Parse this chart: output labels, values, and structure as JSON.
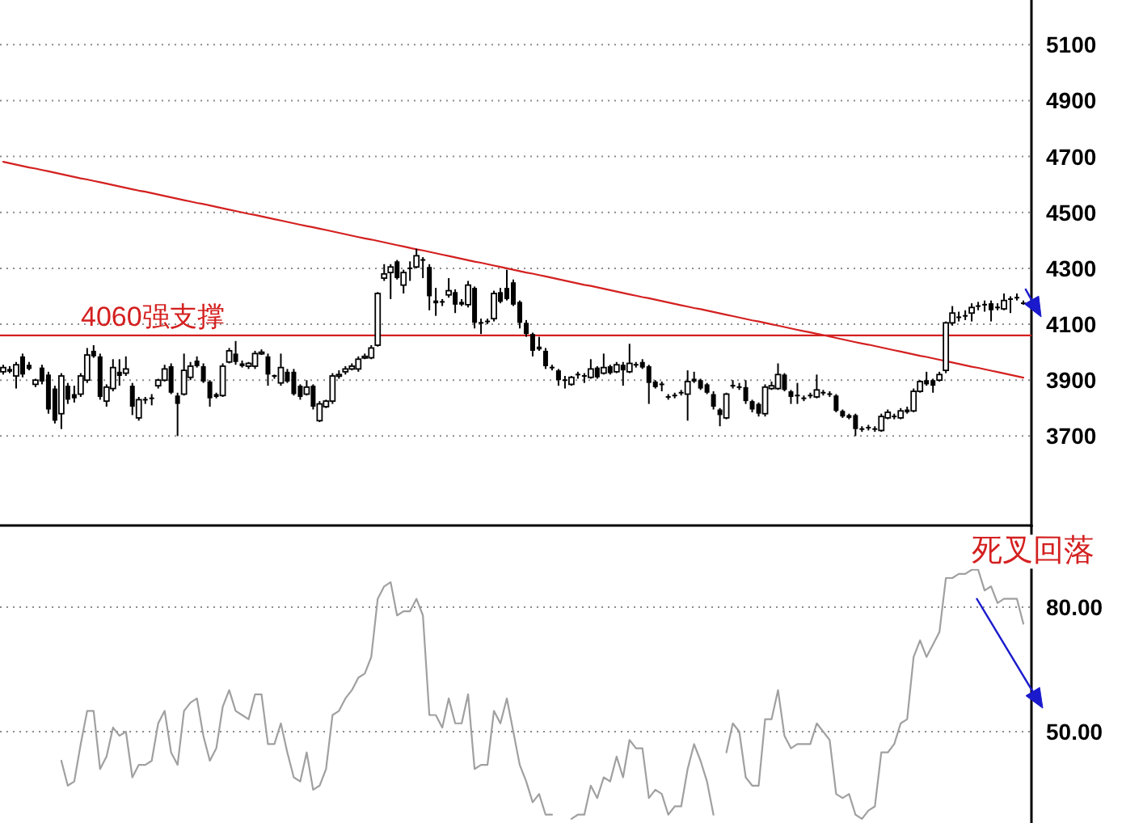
{
  "chart_data": [
    {
      "type": "candlestick",
      "categories": [
        null,
        null,
        null,
        null,
        null,
        null,
        null,
        null,
        null,
        null,
        null,
        null,
        null,
        null,
        null,
        null,
        null,
        null,
        null,
        null,
        null,
        null,
        null,
        null,
        null,
        null,
        null,
        null,
        null,
        null,
        null,
        null,
        null,
        null,
        null,
        null,
        null,
        null,
        null,
        null,
        null,
        null,
        null,
        null,
        null,
        null,
        null,
        null,
        null,
        null,
        null,
        null,
        null,
        null,
        null,
        null,
        null,
        null,
        null,
        null,
        null,
        null,
        null,
        null,
        null,
        null,
        null,
        null,
        null,
        null,
        null,
        null,
        null,
        null,
        null,
        null,
        null,
        null,
        null,
        null,
        null,
        null,
        null,
        null,
        null,
        null,
        null,
        null,
        null,
        null,
        null,
        null,
        null,
        null,
        null,
        null,
        null,
        null,
        null,
        null,
        null,
        null,
        null,
        null,
        null,
        null,
        null,
        null,
        null,
        null,
        null,
        null,
        null,
        null,
        null,
        null,
        null,
        null,
        null,
        null,
        null,
        null,
        null,
        null,
        null,
        null,
        null,
        null,
        null,
        null,
        null,
        null,
        null,
        null,
        null,
        null,
        null,
        null,
        null,
        null,
        null,
        null,
        null,
        null,
        null,
        null,
        null,
        null,
        null,
        null,
        null,
        null,
        null,
        null,
        null,
        null,
        null,
        null,
        null
      ],
      "ohlc": [
        [
          3930,
          3955,
          3920,
          3945
        ],
        [
          3940,
          3950,
          3925,
          3930
        ],
        [
          3915,
          3965,
          3870,
          3955
        ],
        [
          3985,
          3995,
          3910,
          3920
        ],
        [
          3955,
          3965,
          3935,
          3940
        ],
        [
          3885,
          3905,
          3875,
          3900
        ],
        [
          3945,
          3955,
          3885,
          3895
        ],
        [
          3920,
          3930,
          3780,
          3795
        ],
        [
          3870,
          3880,
          3745,
          3755
        ],
        [
          3780,
          3925,
          3725,
          3915
        ],
        [
          3880,
          3890,
          3815,
          3830
        ],
        [
          3850,
          3880,
          3820,
          3835
        ],
        [
          3850,
          3925,
          3840,
          3915
        ],
        [
          3900,
          4015,
          3890,
          3990
        ],
        [
          4005,
          4025,
          3980,
          3985
        ],
        [
          3985,
          3995,
          3830,
          3840
        ],
        [
          3825,
          3885,
          3805,
          3875
        ],
        [
          3870,
          3975,
          3860,
          3945
        ],
        [
          3930,
          3975,
          3880,
          3915
        ],
        [
          3925,
          3985,
          3915,
          3940
        ],
        [
          3880,
          3890,
          3775,
          3805
        ],
        [
          3765,
          3840,
          3755,
          3830
        ],
        [
          3830,
          3840,
          3815,
          3825
        ],
        [
          3835,
          3850,
          3810,
          3830
        ],
        [
          3880,
          3905,
          3870,
          3900
        ],
        [
          3900,
          3955,
          3895,
          3940
        ],
        [
          3950,
          3960,
          3850,
          3855
        ],
        [
          3845,
          3855,
          3700,
          3815
        ],
        [
          3850,
          3995,
          3845,
          3935
        ],
        [
          3910,
          3965,
          3900,
          3950
        ],
        [
          3970,
          3985,
          3945,
          3950
        ],
        [
          3950,
          3960,
          3890,
          3895
        ],
        [
          3895,
          3900,
          3805,
          3835
        ],
        [
          3850,
          3855,
          3835,
          3840
        ],
        [
          3845,
          3960,
          3840,
          3950
        ],
        [
          3965,
          4015,
          3960,
          4005
        ],
        [
          3995,
          4040,
          3955,
          3965
        ],
        [
          3960,
          3970,
          3945,
          3950
        ],
        [
          3950,
          3965,
          3940,
          3960
        ],
        [
          3950,
          4005,
          3940,
          3995
        ],
        [
          3995,
          4010,
          3990,
          4000
        ],
        [
          3985,
          3995,
          3880,
          3920
        ],
        [
          3915,
          3920,
          3905,
          3910
        ],
        [
          3890,
          3995,
          3880,
          3945
        ],
        [
          3930,
          3940,
          3890,
          3895
        ],
        [
          3930,
          3940,
          3845,
          3850
        ],
        [
          3880,
          3885,
          3830,
          3840
        ],
        [
          3850,
          3900,
          3845,
          3875
        ],
        [
          3880,
          3885,
          3795,
          3805
        ],
        [
          3755,
          3825,
          3750,
          3815
        ],
        [
          3805,
          3830,
          3800,
          3825
        ],
        [
          3825,
          3925,
          3815,
          3915
        ],
        [
          3915,
          3935,
          3905,
          3920
        ],
        [
          3930,
          3950,
          3920,
          3940
        ],
        [
          3940,
          3960,
          3935,
          3950
        ],
        [
          3940,
          3985,
          3930,
          3975
        ],
        [
          3980,
          3995,
          3975,
          3985
        ],
        [
          3980,
          4025,
          3975,
          4015
        ],
        [
          4025,
          4215,
          4020,
          4210
        ],
        [
          4265,
          4315,
          4255,
          4280
        ],
        [
          4285,
          4315,
          4190,
          4305
        ],
        [
          4325,
          4330,
          4260,
          4265
        ],
        [
          4240,
          4295,
          4210,
          4285
        ],
        [
          4300,
          4325,
          4255,
          4300
        ],
        [
          4305,
          4370,
          4300,
          4345
        ],
        [
          4330,
          4340,
          4265,
          4330
        ],
        [
          4305,
          4315,
          4150,
          4200
        ],
        [
          4185,
          4230,
          4130,
          4175
        ],
        [
          4180,
          4190,
          4165,
          4180
        ],
        [
          4205,
          4265,
          4195,
          4220
        ],
        [
          4215,
          4225,
          4140,
          4170
        ],
        [
          4180,
          4190,
          4165,
          4170
        ],
        [
          4170,
          4255,
          4160,
          4240
        ],
        [
          4230,
          4235,
          4085,
          4105
        ],
        [
          4105,
          4120,
          4065,
          4105
        ],
        [
          4110,
          4120,
          4100,
          4110
        ],
        [
          4120,
          4220,
          4110,
          4210
        ],
        [
          4215,
          4230,
          4175,
          4180
        ],
        [
          4230,
          4295,
          4185,
          4190
        ],
        [
          4250,
          4260,
          4165,
          4170
        ],
        [
          4180,
          4185,
          4085,
          4105
        ],
        [
          4105,
          4115,
          4055,
          4065
        ],
        [
          4065,
          4070,
          3985,
          4005
        ],
        [
          4020,
          4055,
          4005,
          4010
        ],
        [
          4005,
          4015,
          3940,
          3950
        ],
        [
          3945,
          3955,
          3935,
          3945
        ],
        [
          3935,
          3940,
          3880,
          3900
        ],
        [
          3900,
          3915,
          3870,
          3900
        ],
        [
          3885,
          3915,
          3880,
          3910
        ],
        [
          3920,
          3930,
          3905,
          3920
        ],
        [
          3915,
          3925,
          3890,
          3915
        ],
        [
          3910,
          3975,
          3905,
          3940
        ],
        [
          3945,
          3950,
          3905,
          3910
        ],
        [
          3925,
          3995,
          3920,
          3945
        ],
        [
          3950,
          3955,
          3920,
          3925
        ],
        [
          3930,
          3965,
          3925,
          3955
        ],
        [
          3955,
          3965,
          3880,
          3935
        ],
        [
          3930,
          4030,
          3925,
          3960
        ],
        [
          3955,
          3965,
          3945,
          3955
        ],
        [
          3965,
          3975,
          3940,
          3945
        ],
        [
          3950,
          3955,
          3815,
          3890
        ],
        [
          3895,
          3900,
          3870,
          3875
        ],
        [
          3885,
          3895,
          3860,
          3885
        ],
        [
          3840,
          3850,
          3830,
          3840
        ],
        [
          3845,
          3855,
          3835,
          3845
        ],
        [
          3855,
          3865,
          3845,
          3855
        ],
        [
          3850,
          3935,
          3755,
          3895
        ],
        [
          3905,
          3930,
          3890,
          3895
        ],
        [
          3900,
          3905,
          3865,
          3870
        ],
        [
          3885,
          3890,
          3850,
          3855
        ],
        [
          3850,
          3860,
          3795,
          3805
        ],
        [
          3795,
          3800,
          3735,
          3775
        ],
        [
          3765,
          3855,
          3760,
          3850
        ],
        [
          3880,
          3900,
          3870,
          3880
        ],
        [
          3875,
          3890,
          3865,
          3875
        ],
        [
          3875,
          3900,
          3815,
          3825
        ],
        [
          3825,
          3830,
          3785,
          3795
        ],
        [
          3815,
          3820,
          3770,
          3780
        ],
        [
          3780,
          3885,
          3770,
          3875
        ],
        [
          3870,
          3895,
          3865,
          3880
        ],
        [
          3870,
          3960,
          3865,
          3920
        ],
        [
          3920,
          3925,
          3860,
          3865
        ],
        [
          3860,
          3865,
          3815,
          3840
        ],
        [
          3845,
          3890,
          3815,
          3845
        ],
        [
          3835,
          3845,
          3825,
          3835
        ],
        [
          3845,
          3855,
          3835,
          3845
        ],
        [
          3840,
          3920,
          3835,
          3865
        ],
        [
          3855,
          3865,
          3845,
          3855
        ],
        [
          3850,
          3860,
          3840,
          3850
        ],
        [
          3845,
          3850,
          3785,
          3790
        ],
        [
          3790,
          3795,
          3765,
          3770
        ],
        [
          3775,
          3780,
          3760,
          3765
        ],
        [
          3775,
          3780,
          3700,
          3725
        ],
        [
          3725,
          3735,
          3715,
          3725
        ],
        [
          3730,
          3740,
          3720,
          3730
        ],
        [
          3725,
          3735,
          3715,
          3725
        ],
        [
          3720,
          3780,
          3715,
          3770
        ],
        [
          3765,
          3795,
          3760,
          3785
        ],
        [
          3770,
          3780,
          3760,
          3770
        ],
        [
          3765,
          3800,
          3760,
          3790
        ],
        [
          3795,
          3805,
          3780,
          3785
        ],
        [
          3790,
          3870,
          3785,
          3860
        ],
        [
          3860,
          3900,
          3855,
          3895
        ],
        [
          3900,
          3930,
          3880,
          3885
        ],
        [
          3900,
          3905,
          3855,
          3880
        ],
        [
          3900,
          3930,
          3895,
          3920
        ],
        [
          3935,
          4110,
          3925,
          4105
        ],
        [
          4105,
          4165,
          4095,
          4140
        ],
        [
          4125,
          4145,
          4110,
          4125
        ],
        [
          4130,
          4150,
          4115,
          4130
        ],
        [
          4140,
          4175,
          4110,
          4160
        ],
        [
          4165,
          4180,
          4150,
          4165
        ],
        [
          4170,
          4185,
          4145,
          4170
        ],
        [
          4175,
          4185,
          4110,
          4150
        ],
        [
          4160,
          4175,
          4150,
          4160
        ],
        [
          4155,
          4210,
          4150,
          4185
        ],
        [
          4190,
          4200,
          4140,
          4190
        ],
        [
          4195,
          4210,
          4185,
          4195
        ],
        [
          4175,
          4185,
          4170,
          4175
        ]
      ],
      "series": [
        {
          "type": "line",
          "color": "#d42020",
          "values": [
            4681,
            4676,
            4671,
            4666,
            4661,
            4657,
            4652,
            4647,
            4642,
            4637,
            4632,
            4627,
            4622,
            4618,
            4613,
            4608,
            4603,
            4598,
            4593,
            4588,
            4583,
            4578,
            4574,
            4569,
            4564,
            4559,
            4554,
            4549,
            4544,
            4539,
            4534,
            4530,
            4525,
            4520,
            4515,
            4510,
            4505,
            4500,
            4495,
            4491,
            4486,
            4481,
            4476,
            4471,
            4466,
            4461,
            4456,
            4451,
            4447,
            4442,
            4437,
            4432,
            4427,
            4422,
            4417,
            4412,
            4407,
            4403,
            4398,
            4393,
            4388,
            4383,
            4378,
            4373,
            4368,
            4364,
            4359,
            4354,
            4349,
            4344,
            4339,
            4334,
            4329,
            4324,
            4320,
            4315,
            4310,
            4305,
            4300,
            4295,
            4290,
            4285,
            4281,
            4276,
            4271,
            4266,
            4261,
            4256,
            4251,
            4246,
            4241,
            4237,
            4232,
            4227,
            4222,
            4217,
            4212,
            4207,
            4202,
            4197,
            4193,
            4188,
            4183,
            4178,
            4173,
            4168,
            4163,
            4158,
            4154,
            4149,
            4144,
            4139,
            4134,
            4129,
            4124,
            4119,
            4114,
            4110,
            4105,
            4100,
            4095,
            4090,
            4085,
            4080,
            4075,
            4071,
            4066,
            4061,
            4056,
            4051,
            4046,
            4041,
            4036,
            4031,
            4027,
            4022,
            4017,
            4012,
            4007,
            4002,
            3997,
            3992,
            3987,
            3983,
            3978,
            3973,
            3968,
            3963,
            3958,
            3953,
            3948,
            3944,
            3939,
            3934,
            3929,
            3924,
            3919,
            3914,
            3909
          ]
        }
      ],
      "ref_lines": [
        {
          "axis": "y",
          "value": 4060,
          "label": "4060强支撑",
          "color": "#d42020"
        }
      ],
      "ylim": [
        3380,
        5260
      ],
      "yticks": [
        3700,
        3900,
        4100,
        4300,
        4500,
        4700,
        4900,
        5100
      ],
      "grid": "y",
      "tick_labels": "y"
    },
    {
      "type": "line",
      "categories": [
        null,
        null,
        null,
        null,
        null,
        null,
        null,
        null,
        null,
        null,
        null,
        null,
        null,
        null,
        null,
        null,
        null,
        null,
        null,
        null,
        null,
        null,
        null,
        null,
        null,
        null,
        null,
        null,
        null,
        null,
        null,
        null,
        null,
        null,
        null,
        null,
        null,
        null,
        null,
        null,
        null,
        null,
        null,
        null,
        null,
        null,
        null,
        null,
        null,
        null,
        null,
        null,
        null,
        null,
        null,
        null,
        null,
        null,
        null,
        null,
        null,
        null,
        null,
        null,
        null,
        null,
        null,
        null,
        null,
        null,
        null,
        null,
        null,
        null,
        null,
        null,
        null,
        null,
        null,
        null,
        null,
        null,
        null,
        null,
        null,
        null,
        null,
        null,
        null,
        null,
        null,
        null,
        null,
        null,
        null,
        null,
        null,
        null,
        null,
        null,
        null,
        null,
        null,
        null,
        null,
        null,
        null,
        null,
        null,
        null,
        null,
        null,
        null,
        null,
        null,
        null,
        null,
        null,
        null,
        null,
        null,
        null,
        null,
        null,
        null,
        null,
        null,
        null,
        null,
        null,
        null,
        null,
        null,
        null,
        null,
        null,
        null,
        null,
        null,
        null,
        null,
        null,
        null,
        null,
        null,
        null,
        null,
        null,
        null,
        null,
        null,
        null,
        null,
        null,
        null,
        null,
        null,
        null,
        null
      ],
      "series": [
        {
          "color": "#a0a0a0",
          "values": [
            null,
            null,
            null,
            null,
            null,
            null,
            null,
            null,
            null,
            43,
            37,
            38,
            47,
            55,
            55,
            41,
            44,
            51,
            49,
            50,
            39,
            42,
            42,
            43,
            52,
            55,
            45,
            42,
            55,
            57,
            58,
            49,
            43,
            46,
            56,
            60,
            55,
            54,
            53,
            59,
            59,
            47,
            47,
            52,
            45,
            39,
            38,
            45,
            36,
            37,
            41,
            54,
            55,
            58,
            60,
            63,
            64,
            68,
            82,
            85,
            86,
            78,
            79,
            79,
            82,
            78,
            54,
            54,
            51,
            58,
            52,
            52,
            59,
            41,
            42,
            42,
            55,
            52,
            58,
            50,
            42,
            38,
            33,
            35,
            30,
            30,
            null,
            null,
            29,
            30,
            30,
            37,
            34,
            39,
            38,
            44,
            39,
            48,
            46,
            46,
            34,
            36,
            35,
            30,
            32,
            32,
            41,
            47,
            43,
            38,
            30,
            null,
            45,
            52,
            50,
            39,
            37,
            37,
            53,
            53,
            60,
            49,
            46,
            47,
            47,
            47,
            52,
            50,
            48,
            35,
            34,
            35,
            30,
            29,
            31,
            32,
            45,
            45,
            47,
            52,
            53,
            68,
            72,
            68,
            71,
            74,
            87,
            87,
            88,
            88,
            89,
            89,
            84,
            85,
            81,
            82,
            82,
            82,
            76
          ]
        }
      ],
      "ylim": [
        28,
        99
      ],
      "yticks": [
        {
          "value": 50,
          "label": "50.00"
        },
        {
          "value": 80,
          "label": "80.00"
        }
      ],
      "grid": "y",
      "tick_labels": "y",
      "annotations": [
        "死叉回落"
      ]
    }
  ]
}
